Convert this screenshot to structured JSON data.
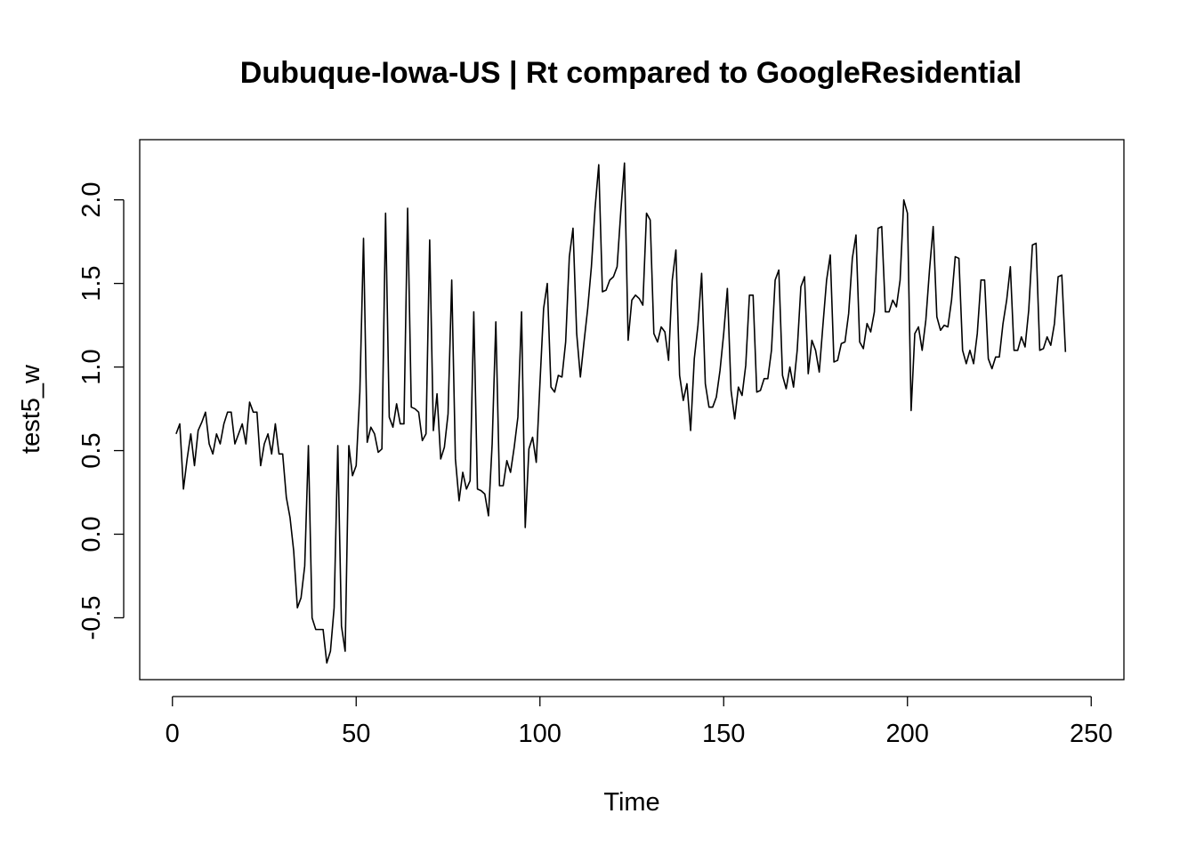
{
  "chart_data": {
    "type": "line",
    "title": "Dubuque-Iowa-US | Rt compared to GoogleResidential",
    "xlabel": "Time",
    "ylabel": "test5_w",
    "xlim": [
      -8.9,
      258.9
    ],
    "ylim": [
      -0.87,
      2.36
    ],
    "x_ticks": [
      0,
      50,
      100,
      150,
      200,
      250
    ],
    "y_ticks": [
      -0.5,
      0.0,
      0.5,
      1.0,
      1.5,
      2.0
    ],
    "x_tick_labels": [
      "0",
      "50",
      "100",
      "150",
      "200",
      "250"
    ],
    "y_tick_labels": [
      "-0.5",
      "0.0",
      "0.5",
      "1.0",
      "1.5",
      "2.0"
    ],
    "line_color": "#000000",
    "series": [
      {
        "name": "test5_w",
        "x_start": 1,
        "values": [
          0.6,
          0.66,
          0.27,
          0.45,
          0.6,
          0.41,
          0.62,
          0.67,
          0.73,
          0.54,
          0.48,
          0.6,
          0.54,
          0.66,
          0.73,
          0.73,
          0.54,
          0.6,
          0.66,
          0.54,
          0.79,
          0.73,
          0.73,
          0.41,
          0.54,
          0.6,
          0.48,
          0.66,
          0.48,
          0.48,
          0.22,
          0.1,
          -0.1,
          -0.44,
          -0.38,
          -0.19,
          0.53,
          -0.5,
          -0.57,
          -0.57,
          -0.57,
          -0.77,
          -0.7,
          -0.44,
          0.53,
          -0.55,
          -0.7,
          0.53,
          0.35,
          0.41,
          0.85,
          1.77,
          0.55,
          0.64,
          0.6,
          0.49,
          0.51,
          1.92,
          0.7,
          0.64,
          0.78,
          0.66,
          0.66,
          1.95,
          0.76,
          0.75,
          0.73,
          0.56,
          0.6,
          1.76,
          0.62,
          0.84,
          0.45,
          0.52,
          0.72,
          1.52,
          0.45,
          0.2,
          0.37,
          0.27,
          0.32,
          1.33,
          0.27,
          0.26,
          0.24,
          0.11,
          0.54,
          1.27,
          0.29,
          0.29,
          0.44,
          0.37,
          0.52,
          0.7,
          1.33,
          0.04,
          0.51,
          0.58,
          0.43,
          0.9,
          1.35,
          1.5,
          0.88,
          0.85,
          0.95,
          0.94,
          1.15,
          1.66,
          1.83,
          1.2,
          0.94,
          1.15,
          1.35,
          1.6,
          1.95,
          2.21,
          1.45,
          1.46,
          1.52,
          1.54,
          1.6,
          1.93,
          2.22,
          1.16,
          1.4,
          1.43,
          1.41,
          1.37,
          1.92,
          1.88,
          1.2,
          1.15,
          1.24,
          1.21,
          1.04,
          1.52,
          1.7,
          0.95,
          0.8,
          0.9,
          0.62,
          1.05,
          1.25,
          1.56,
          0.9,
          0.76,
          0.76,
          0.82,
          0.98,
          1.2,
          1.47,
          0.86,
          0.69,
          0.88,
          0.83,
          1.01,
          1.43,
          1.43,
          0.85,
          0.86,
          0.93,
          0.93,
          1.1,
          1.52,
          1.58,
          0.95,
          0.87,
          1.0,
          0.88,
          1.1,
          1.48,
          1.54,
          0.96,
          1.16,
          1.1,
          0.97,
          1.25,
          1.52,
          1.67,
          1.03,
          1.04,
          1.14,
          1.15,
          1.32,
          1.65,
          1.79,
          1.15,
          1.11,
          1.26,
          1.21,
          1.33,
          1.83,
          1.84,
          1.33,
          1.33,
          1.4,
          1.36,
          1.52,
          2.0,
          1.92,
          0.74,
          1.2,
          1.24,
          1.1,
          1.28,
          1.58,
          1.84,
          1.3,
          1.22,
          1.25,
          1.24,
          1.4,
          1.66,
          1.65,
          1.1,
          1.02,
          1.1,
          1.02,
          1.2,
          1.52,
          1.52,
          1.05,
          0.99,
          1.06,
          1.06,
          1.26,
          1.4,
          1.6,
          1.1,
          1.1,
          1.18,
          1.12,
          1.34,
          1.73,
          1.74,
          1.1,
          1.11,
          1.18,
          1.13,
          1.26,
          1.54,
          1.55,
          1.09
        ]
      }
    ]
  }
}
